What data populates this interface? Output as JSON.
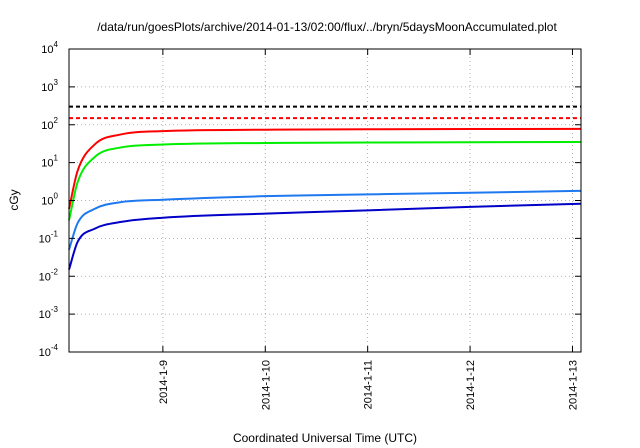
{
  "chart_data": {
    "type": "line",
    "title": "/data/run/goesPlots/archive/2014-01-13/02:00/flux/../bryn/5daysMoonAccumulated.plot",
    "xlabel": "Coordinated Universal Time (UTC)",
    "ylabel": "cGy",
    "y_scale": "log",
    "ylim": [
      0.0001,
      10000
    ],
    "xlim": [
      "2014-01-08 02:00",
      "2014-01-13 02:00"
    ],
    "y_ticks": [
      {
        "base": "10",
        "exp": "-4"
      },
      {
        "base": "10",
        "exp": "-3"
      },
      {
        "base": "10",
        "exp": "-2"
      },
      {
        "base": "10",
        "exp": "-1"
      },
      {
        "base": "10",
        "exp": "0"
      },
      {
        "base": "10",
        "exp": "1"
      },
      {
        "base": "10",
        "exp": "2"
      },
      {
        "base": "10",
        "exp": "3"
      },
      {
        "base": "10",
        "exp": "4"
      }
    ],
    "x_ticks": [
      "2014-1-9",
      "2014-1-10",
      "2014-1-11",
      "2014-1-12",
      "2014-1-13"
    ],
    "grid": true,
    "thresholds": [
      {
        "value": 300,
        "color": "#000000",
        "style": "dashed"
      },
      {
        "value": 150,
        "color": "#ff0000",
        "style": "dashed"
      }
    ],
    "series": [
      {
        "color": "#ff0000",
        "x": [
          "2014-01-08 02:00",
          "2014-01-08 04:00",
          "2014-01-08 08:00",
          "2014-01-08 14:00",
          "2014-01-09 00:00",
          "2014-01-10 00:00",
          "2014-01-11 00:00",
          "2014-01-12 00:00",
          "2014-01-13 02:00"
        ],
        "values": [
          0.6,
          6,
          30,
          55,
          68,
          74,
          76,
          77,
          78
        ]
      },
      {
        "color": "#00ee00",
        "x": [
          "2014-01-08 02:00",
          "2014-01-08 04:00",
          "2014-01-08 08:00",
          "2014-01-08 14:00",
          "2014-01-09 00:00",
          "2014-01-10 00:00",
          "2014-01-11 00:00",
          "2014-01-12 00:00",
          "2014-01-13 02:00"
        ],
        "values": [
          0.3,
          3,
          14,
          25,
          30,
          33,
          34,
          34.5,
          35
        ]
      },
      {
        "color": "#1e78f0",
        "x": [
          "2014-01-08 02:00",
          "2014-01-08 04:00",
          "2014-01-08 08:00",
          "2014-01-08 14:00",
          "2014-01-09 00:00",
          "2014-01-10 00:00",
          "2014-01-11 00:00",
          "2014-01-12 00:00",
          "2014-01-13 02:00"
        ],
        "values": [
          0.05,
          0.25,
          0.6,
          0.9,
          1.05,
          1.3,
          1.45,
          1.6,
          1.8
        ]
      },
      {
        "color": "#0000c8",
        "x": [
          "2014-01-08 02:00",
          "2014-01-08 04:00",
          "2014-01-08 08:00",
          "2014-01-08 14:00",
          "2014-01-09 00:00",
          "2014-01-10 00:00",
          "2014-01-11 00:00",
          "2014-01-12 00:00",
          "2014-01-13 02:00"
        ],
        "values": [
          0.015,
          0.08,
          0.18,
          0.27,
          0.35,
          0.45,
          0.55,
          0.68,
          0.82
        ]
      }
    ]
  }
}
